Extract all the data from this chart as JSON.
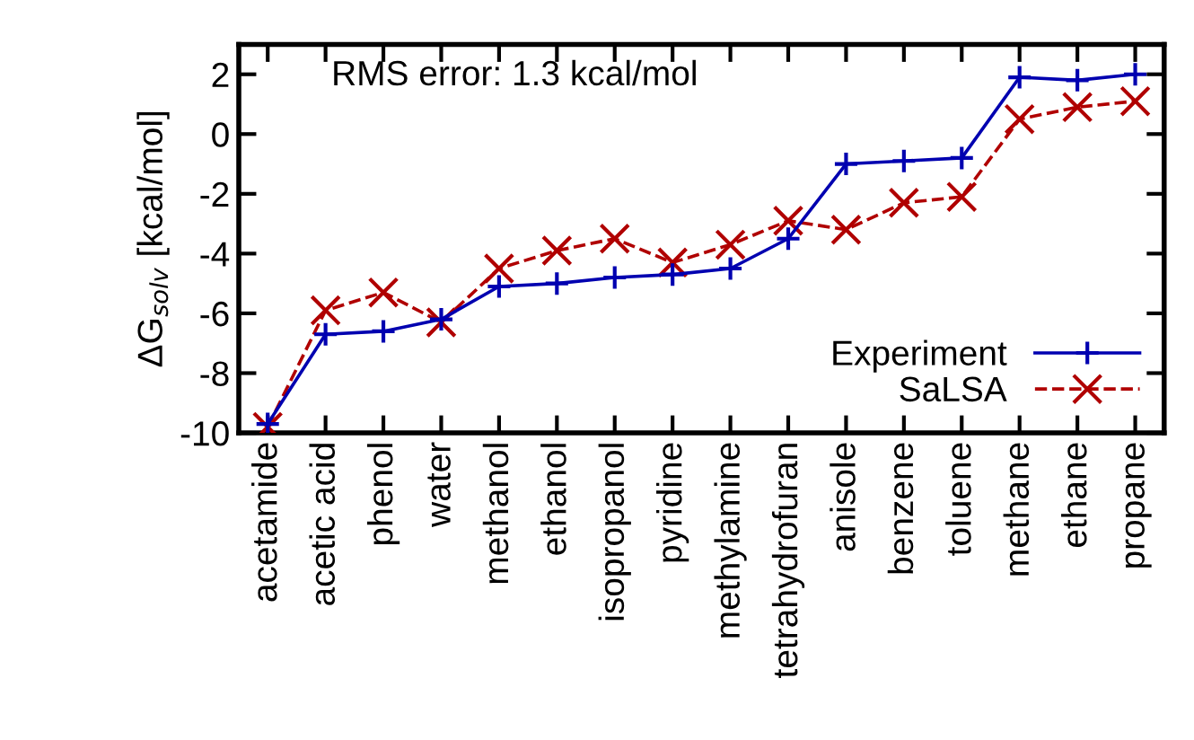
{
  "chart_data": {
    "type": "line",
    "ylabel": "ΔG$_{solv}$ [kcal/mol]",
    "categories": [
      "acetamide",
      "acetic acid",
      "phenol",
      "water",
      "methanol",
      "ethanol",
      "isopropanol",
      "pyridine",
      "methylamine",
      "tetrahydrofuran",
      "anisole",
      "benzene",
      "toluene",
      "methane",
      "ethane",
      "propane"
    ],
    "series": [
      {
        "name": "Experiment",
        "color": "#0000b0",
        "marker": "cross",
        "line_style": "solid",
        "values": [
          -9.7,
          -6.7,
          -6.6,
          -6.2,
          -5.1,
          -5.0,
          -4.8,
          -4.7,
          -4.5,
          -3.5,
          -1.0,
          -0.9,
          -0.8,
          1.9,
          1.8,
          2.0
        ]
      },
      {
        "name": "SaLSA",
        "color": "#b00000",
        "marker": "x",
        "line_style": "dashed",
        "values": [
          -9.8,
          -5.9,
          -5.3,
          -6.3,
          -4.5,
          -3.9,
          -3.5,
          -4.3,
          -3.7,
          -2.9,
          -3.2,
          -2.3,
          -2.1,
          0.5,
          0.9,
          1.1
        ]
      }
    ],
    "ylim": [
      -10,
      3
    ],
    "yticks": [
      -10,
      -8,
      -6,
      -4,
      -2,
      0,
      2
    ],
    "grid": false,
    "legend": "bottom right",
    "annotations": [
      "RMS error: 1.3 kcal/mol"
    ]
  }
}
